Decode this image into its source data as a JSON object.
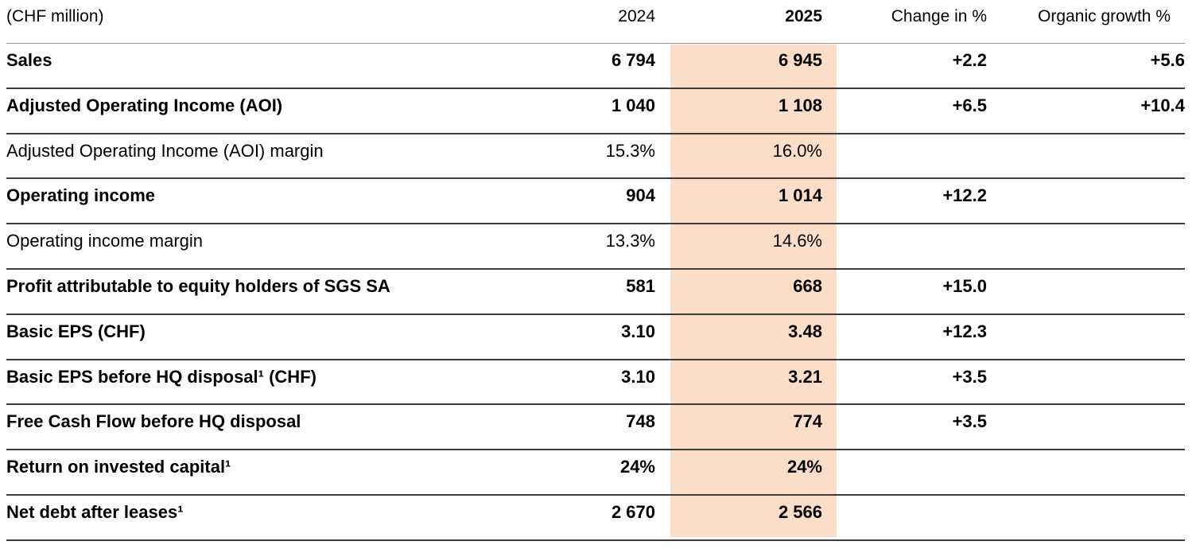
{
  "table": {
    "unit_label": "(CHF million)",
    "highlight_color": "#FCDEC8",
    "columns": [
      "2024",
      "2025",
      "Change in %",
      "Organic growth %"
    ],
    "rows": [
      {
        "label": "Sales",
        "bold": true,
        "y2024": "6 794",
        "y2025": "6 945",
        "change": "+2.2",
        "organic": "+5.6"
      },
      {
        "label": "Adjusted Operating Income (AOI)",
        "bold": true,
        "y2024": "1 040",
        "y2025": "1 108",
        "change": "+6.5",
        "organic": "+10.4"
      },
      {
        "label": "Adjusted Operating Income (AOI) margin",
        "bold": false,
        "y2024": "15.3%",
        "y2025": "16.0%",
        "change": "",
        "organic": ""
      },
      {
        "label": "Operating income",
        "bold": true,
        "y2024": "904",
        "y2025": "1 014",
        "change": "+12.2",
        "organic": ""
      },
      {
        "label": "Operating income margin",
        "bold": false,
        "y2024": "13.3%",
        "y2025": "14.6%",
        "change": "",
        "organic": ""
      },
      {
        "label": "Profit attributable to equity holders of SGS SA",
        "bold": true,
        "y2024": "581",
        "y2025": "668",
        "change": "+15.0",
        "organic": ""
      },
      {
        "label": "Basic EPS (CHF)",
        "bold": true,
        "y2024": "3.10",
        "y2025": "3.48",
        "change": "+12.3",
        "organic": ""
      },
      {
        "label": "Basic EPS before HQ disposal¹ (CHF)",
        "bold": true,
        "y2024": "3.10",
        "y2025": "3.21",
        "change": "+3.5",
        "organic": ""
      },
      {
        "label": "Free Cash Flow before HQ disposal",
        "bold": true,
        "y2024": "748",
        "y2025": "774",
        "change": "+3.5",
        "organic": ""
      },
      {
        "label": "Return on invested capital¹",
        "bold": true,
        "y2024": "24%",
        "y2025": "24%",
        "change": "",
        "organic": ""
      },
      {
        "label": "Net debt after leases¹",
        "bold": true,
        "y2024": "2 670",
        "y2025": "2 566",
        "change": "",
        "organic": ""
      }
    ]
  }
}
